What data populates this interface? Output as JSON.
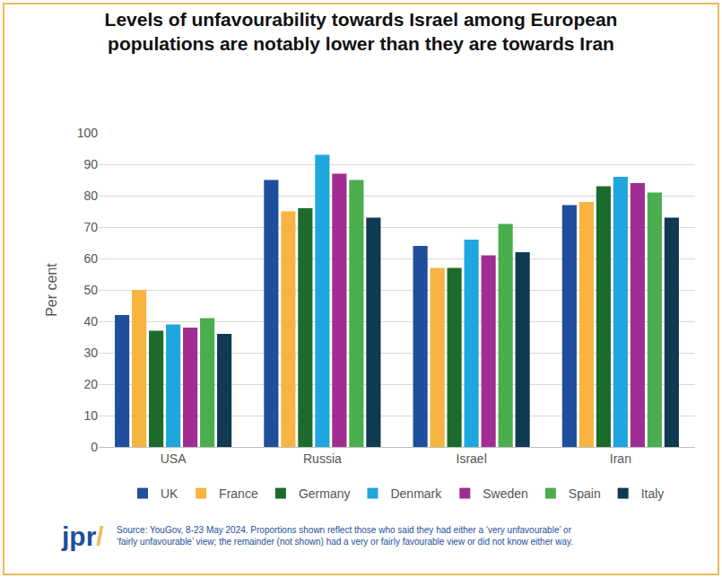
{
  "chart_data": {
    "type": "bar",
    "title": [
      "Levels of unfavourability towards Israel among European",
      "populations are notably lower than they are towards Iran"
    ],
    "y_label": "Per cent",
    "categories": [
      "USA",
      "Russia",
      "Israel",
      "Iran"
    ],
    "series": [
      {
        "name": "UK",
        "color": "#1f4e9c",
        "values": [
          42,
          85,
          64,
          77
        ]
      },
      {
        "name": "France",
        "color": "#f7b440",
        "values": [
          50,
          75,
          57,
          78
        ]
      },
      {
        "name": "Germany",
        "color": "#1d6b2c",
        "values": [
          37,
          76,
          57,
          83
        ]
      },
      {
        "name": "Denmark",
        "color": "#1fa6de",
        "values": [
          39,
          93,
          66,
          86
        ]
      },
      {
        "name": "Sweden",
        "color": "#a12c93",
        "values": [
          38,
          87,
          61,
          84
        ]
      },
      {
        "name": "Spain",
        "color": "#4aad4e",
        "values": [
          41,
          85,
          71,
          81
        ]
      },
      {
        "name": "Italy",
        "color": "#0f3a52",
        "values": [
          36,
          73,
          62,
          73
        ]
      }
    ],
    "ylim": [
      0,
      100
    ],
    "yticks": [
      0,
      10,
      20,
      30,
      40,
      50,
      60,
      70,
      80,
      90,
      100
    ],
    "grid": true,
    "legend": "bottom",
    "annotations": [
      {
        "text": [
          "jpr/"
        ]
      },
      {
        "text": [
          "Source: YouGov, 8-23 May 2024. Proportions shown reflect those who said they had either a ‘very unfavourable’ or",
          "‘fairly unfavourable’ view; the remainder (not shown) had a very or fairly favourable view or did not know either way."
        ]
      }
    ]
  }
}
